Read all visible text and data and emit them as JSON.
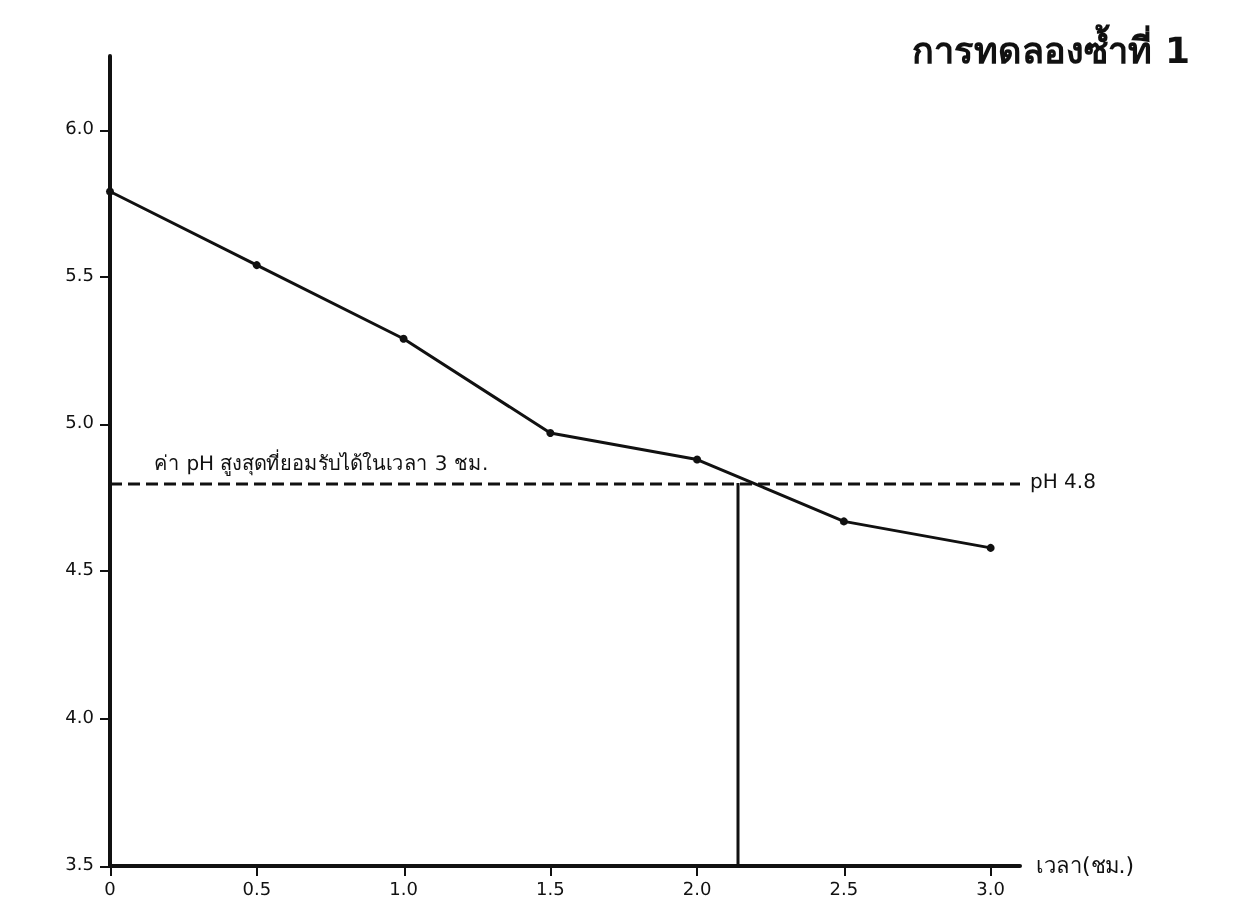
{
  "chart_data": {
    "type": "line",
    "title": "การทดลองซ้ำที่ 1",
    "xlabel": "เวลา(ชม.)",
    "x": [
      0,
      0.5,
      1.0,
      1.5,
      2.0,
      2.5,
      3.0
    ],
    "series": [
      {
        "color": "#111111",
        "values": [
          5.79,
          5.54,
          5.29,
          4.97,
          4.88,
          4.67,
          4.58
        ]
      }
    ],
    "xlim": [
      0,
      3.1
    ],
    "xticks": [
      {
        "value": 0,
        "label": "0"
      },
      {
        "value": 0.5,
        "label": "0.5"
      },
      {
        "value": 1,
        "label": "1.0"
      },
      {
        "value": 1.5,
        "label": "1.5"
      },
      {
        "value": 2,
        "label": "2.0"
      },
      {
        "value": 2.5,
        "label": "2.5"
      },
      {
        "value": 3,
        "label": "3.0"
      }
    ],
    "ylim": [
      3.5,
      6.25
    ],
    "yticks": [
      {
        "value": 3.5,
        "label": "3.5"
      },
      {
        "value": 4,
        "label": "4.0"
      },
      {
        "value": 4.5,
        "label": "4.5"
      },
      {
        "value": 5,
        "label": "5.0"
      },
      {
        "value": 5.5,
        "label": "5.5"
      },
      {
        "value": 6,
        "label": "6.0"
      }
    ],
    "ref_lines": [
      {
        "axis": "y",
        "value": 4.8,
        "label": "pH 4.8",
        "line_style": "dashed"
      },
      {
        "axis": "x",
        "value": 2.14,
        "line_style": "solid"
      }
    ],
    "annotations": [
      {
        "text": "ค่า pH สูงสุดที่ยอมรับได้ในเวลา 3 ชม.",
        "x": 0.15,
        "y": 4.8
      }
    ],
    "marker": "circle",
    "line_style": "solid"
  }
}
